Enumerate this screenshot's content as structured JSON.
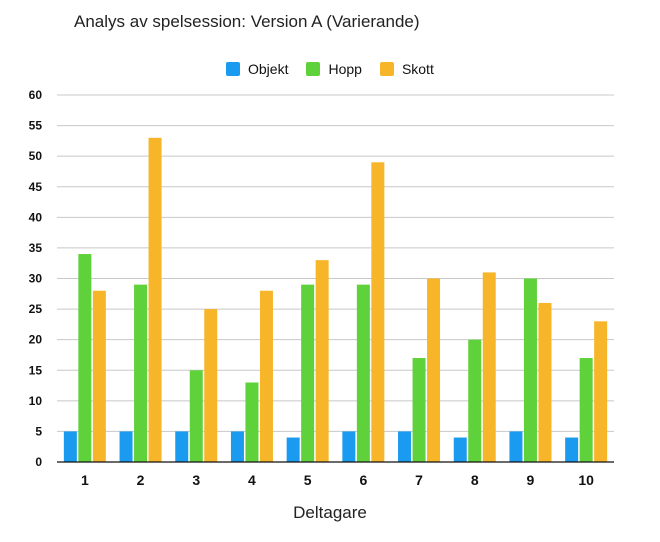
{
  "chart_data": {
    "type": "bar",
    "title": "Analys av spelsession: Version A (Varierande)",
    "xlabel": "Deltagare",
    "ylabel": "",
    "ylim": [
      0,
      60
    ],
    "yticks": [
      "0",
      "5",
      "10",
      "15",
      "20",
      "25",
      "30",
      "35",
      "40",
      "45",
      "50",
      "55",
      "60"
    ],
    "grid": true,
    "legend_position": "top-center",
    "categories": [
      "1",
      "2",
      "3",
      "4",
      "5",
      "6",
      "7",
      "8",
      "9",
      "10"
    ],
    "series": [
      {
        "name": "Objekt",
        "color": "#1a9bf0",
        "values": [
          5,
          5,
          5,
          5,
          4,
          5,
          5,
          4,
          5,
          4
        ]
      },
      {
        "name": "Hopp",
        "color": "#5fd13a",
        "values": [
          34,
          29,
          15,
          13,
          29,
          29,
          17,
          20,
          30,
          17
        ]
      },
      {
        "name": "Skott",
        "color": "#f7b52a",
        "values": [
          28,
          53,
          25,
          28,
          33,
          49,
          30,
          31,
          26,
          23
        ]
      }
    ]
  }
}
